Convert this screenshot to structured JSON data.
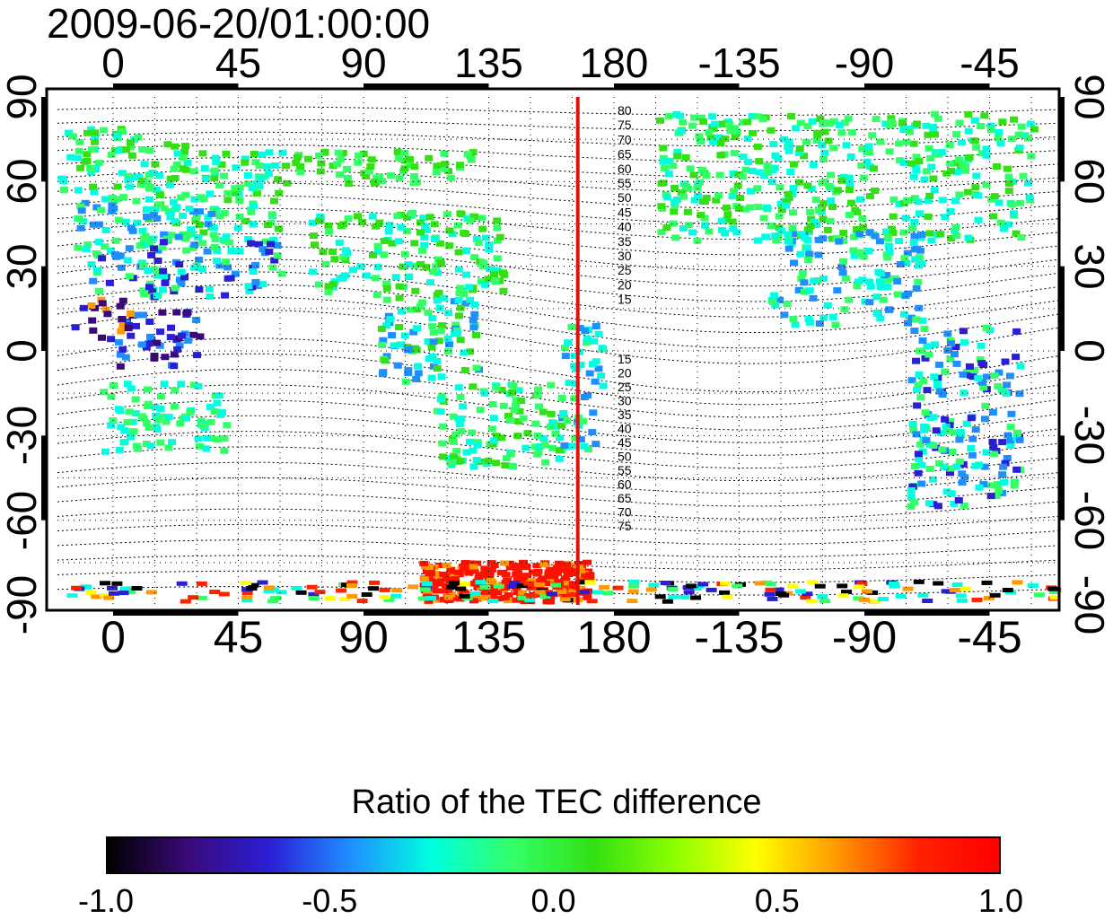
{
  "map": {
    "timestamp": "2009-06-20/01:00:00",
    "lon_ticks": [
      "0",
      "45",
      "90",
      "135",
      "180",
      "-135",
      "-90",
      "-45"
    ],
    "lon_ticks_bottom": [
      "0",
      "45",
      "90",
      "135",
      "180",
      "-135",
      "-90",
      "-45"
    ],
    "lat_ticks_left": [
      "90",
      "60",
      "30",
      "0",
      "-30",
      "-60",
      "-90"
    ],
    "lat_ticks_right": [
      "90",
      "60",
      "30",
      "0",
      "-30",
      "-60",
      "-90"
    ],
    "lon_range": [
      -20,
      340
    ],
    "lat_range": [
      -90,
      90
    ],
    "terminator_longitude": 167,
    "terminator_color": "#dd1111",
    "contour_labels_north": [
      "80",
      "75",
      "70",
      "65",
      "60",
      "55",
      "50",
      "45",
      "40",
      "35",
      "30",
      "25",
      "20",
      "15"
    ],
    "contour_labels_south": [
      "15",
      "20",
      "25",
      "30",
      "35",
      "40",
      "45",
      "50",
      "55",
      "60",
      "65",
      "70",
      "75"
    ],
    "grid": "dotted"
  },
  "colorbar": {
    "title": "Ratio of the TEC difference",
    "tick_labels": [
      "-1.0",
      "-0.5",
      "0.0",
      "0.5",
      "1.0"
    ],
    "range": [
      -1.0,
      1.0
    ],
    "colors": [
      "#000000",
      "#3a0a7a",
      "#2b1fd6",
      "#1f8fff",
      "#00ffe0",
      "#33ff66",
      "#33e014",
      "#8cff00",
      "#ffff00",
      "#ff9900",
      "#ff2200",
      "#ff0000"
    ]
  }
}
